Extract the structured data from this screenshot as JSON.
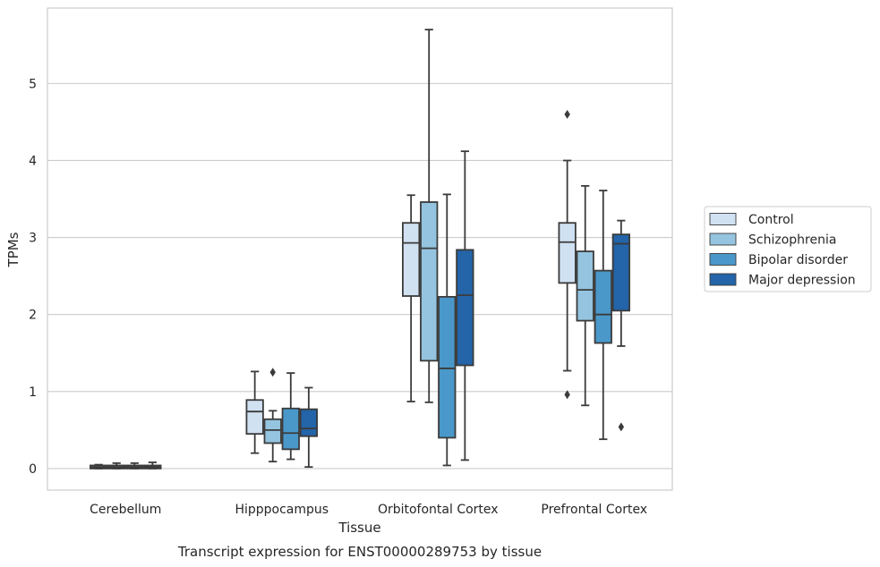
{
  "chart_data": {
    "type": "box",
    "title": "",
    "caption": "Transcript expression for ENST00000289753 by tissue",
    "xlabel": "Tissue",
    "ylabel": "TPMs",
    "ylim": [
      -0.28,
      5.98
    ],
    "yticks": [
      "0",
      "1",
      "2",
      "3",
      "4",
      "5"
    ],
    "grid": "horizontal",
    "legend_position": "right",
    "categories": [
      "Cerebellum",
      "Hipppocampus",
      "Orbitofontal Cortex",
      "Prefrontal Cortex"
    ],
    "series": [
      {
        "name": "Control",
        "color": "#d0e1f2",
        "boxes": [
          {
            "whisker_low": 0.0,
            "q1": 0.0,
            "median": 0.02,
            "q3": 0.04,
            "whisker_high": 0.05,
            "outliers": []
          },
          {
            "whisker_low": 0.2,
            "q1": 0.45,
            "median": 0.74,
            "q3": 0.89,
            "whisker_high": 1.26,
            "outliers": []
          },
          {
            "whisker_low": 0.87,
            "q1": 2.24,
            "median": 2.93,
            "q3": 3.19,
            "whisker_high": 3.55,
            "outliers": []
          },
          {
            "whisker_low": 1.27,
            "q1": 2.41,
            "median": 2.94,
            "q3": 3.19,
            "whisker_high": 4.0,
            "outliers": [
              0.96,
              4.6
            ]
          }
        ]
      },
      {
        "name": "Schizophrenia",
        "color": "#94c4df",
        "boxes": [
          {
            "whisker_low": 0.0,
            "q1": 0.0,
            "median": 0.02,
            "q3": 0.04,
            "whisker_high": 0.07,
            "outliers": []
          },
          {
            "whisker_low": 0.09,
            "q1": 0.33,
            "median": 0.5,
            "q3": 0.64,
            "whisker_high": 0.75,
            "outliers": [
              1.25
            ]
          },
          {
            "whisker_low": 0.86,
            "q1": 1.4,
            "median": 2.86,
            "q3": 3.46,
            "whisker_high": 5.7,
            "outliers": []
          },
          {
            "whisker_low": 0.82,
            "q1": 1.92,
            "median": 2.32,
            "q3": 2.82,
            "whisker_high": 3.67,
            "outliers": []
          }
        ]
      },
      {
        "name": "Bipolar disorder",
        "color": "#4a98c9",
        "boxes": [
          {
            "whisker_low": 0.0,
            "q1": 0.0,
            "median": 0.02,
            "q3": 0.04,
            "whisker_high": 0.07,
            "outliers": []
          },
          {
            "whisker_low": 0.12,
            "q1": 0.25,
            "median": 0.46,
            "q3": 0.78,
            "whisker_high": 1.24,
            "outliers": []
          },
          {
            "whisker_low": 0.04,
            "q1": 0.4,
            "median": 1.3,
            "q3": 2.23,
            "whisker_high": 3.56,
            "outliers": []
          },
          {
            "whisker_low": 0.38,
            "q1": 1.63,
            "median": 2.0,
            "q3": 2.57,
            "whisker_high": 3.61,
            "outliers": []
          }
        ]
      },
      {
        "name": "Major depression",
        "color": "#2464a8",
        "boxes": [
          {
            "whisker_low": 0.0,
            "q1": 0.0,
            "median": 0.02,
            "q3": 0.04,
            "whisker_high": 0.08,
            "outliers": []
          },
          {
            "whisker_low": 0.02,
            "q1": 0.42,
            "median": 0.52,
            "q3": 0.77,
            "whisker_high": 1.05,
            "outliers": []
          },
          {
            "whisker_low": 0.11,
            "q1": 1.34,
            "median": 2.25,
            "q3": 2.84,
            "whisker_high": 4.12,
            "outliers": []
          },
          {
            "whisker_low": 1.59,
            "q1": 2.05,
            "median": 2.92,
            "q3": 3.04,
            "whisker_high": 3.22,
            "outliers": [
              0.54
            ]
          }
        ]
      }
    ]
  }
}
